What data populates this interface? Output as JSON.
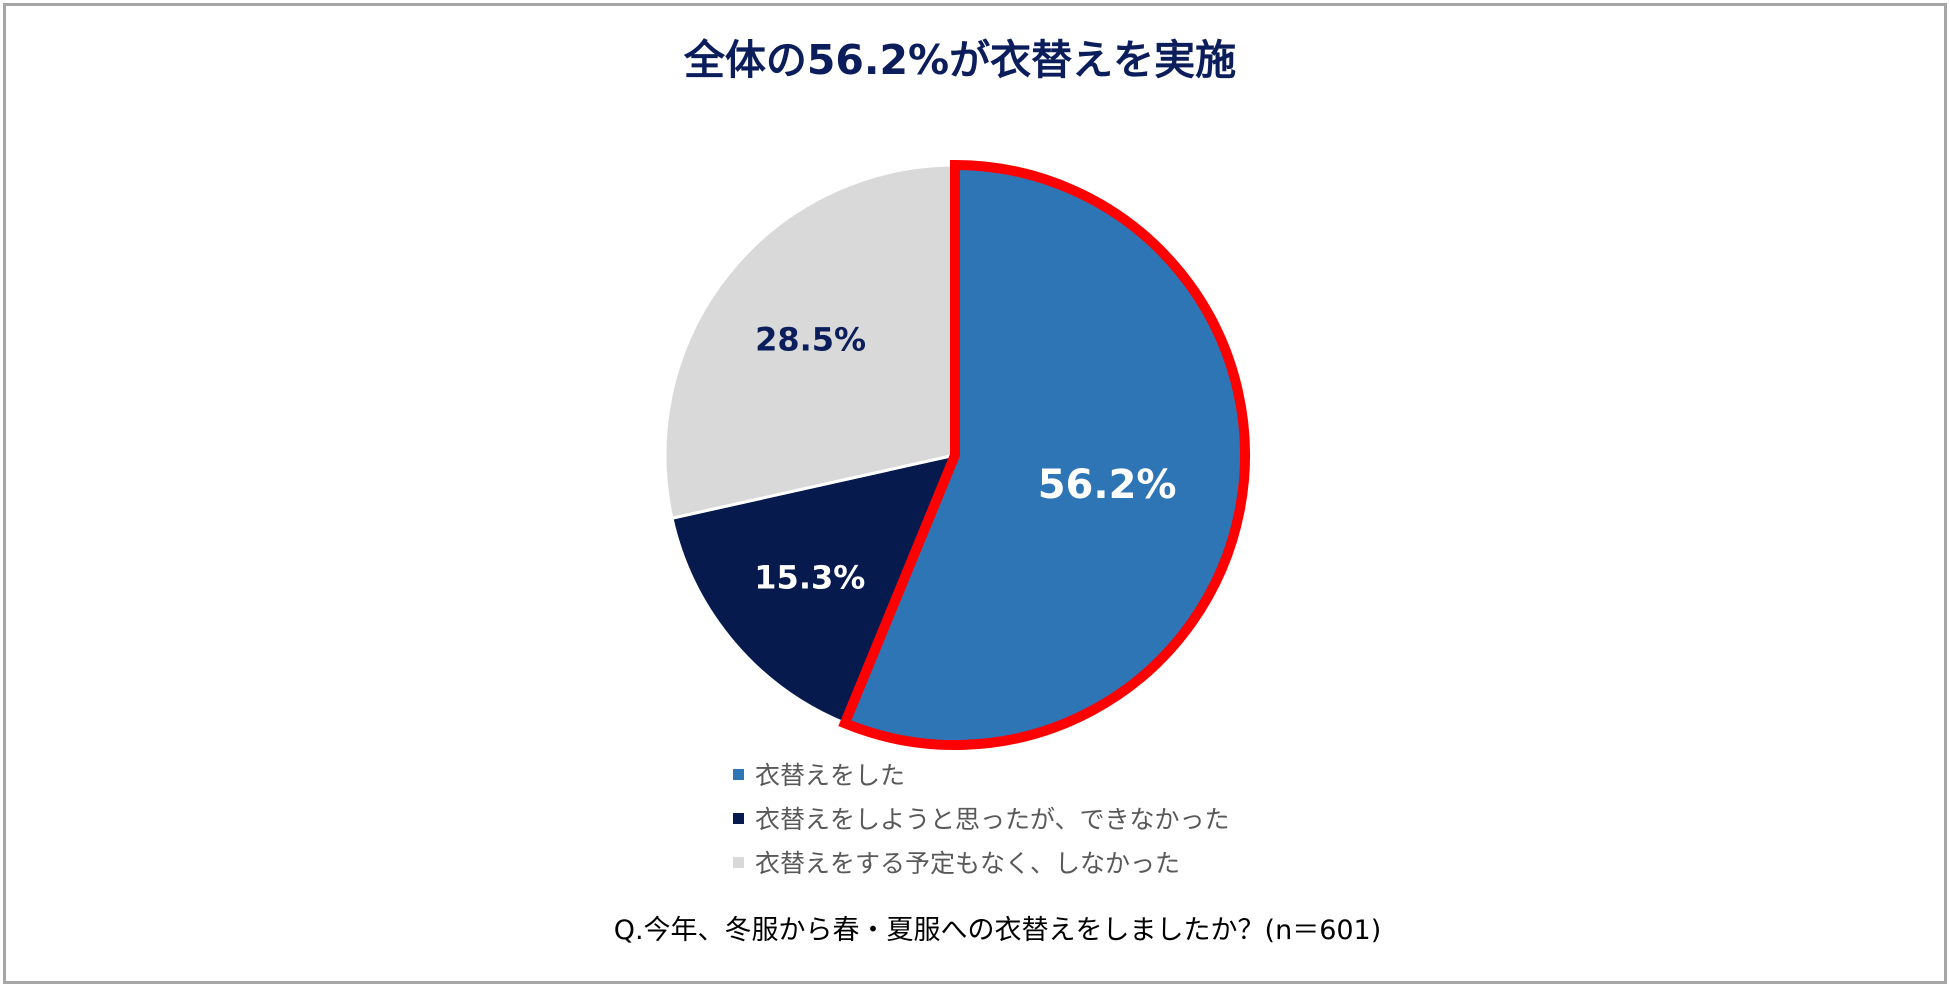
{
  "chart_data": {
    "type": "pie",
    "title": "全体の56.2%が衣替えを実施",
    "categories": [
      "衣替えをした",
      "衣替えをしようと思ったが、できなかった",
      "衣替えをする予定もなく、しなかった"
    ],
    "values": [
      56.2,
      15.3,
      28.5
    ],
    "value_labels": [
      "56.2%",
      "15.3%",
      "28.5%"
    ],
    "colors": [
      "#2e75b6",
      "#061a4e",
      "#d9d9d9"
    ],
    "label_colors": [
      "#ffffff",
      "#ffffff",
      "#0b1e5b"
    ],
    "highlight": {
      "category": "衣替えをした",
      "outline_color": "#ff0000"
    },
    "legend_position": "bottom",
    "start_angle_deg": 0,
    "direction": "clockwise"
  },
  "footer": {
    "question": "Q.今年、冬服から春・夏服への衣替えをしましたか？(n＝601)"
  }
}
